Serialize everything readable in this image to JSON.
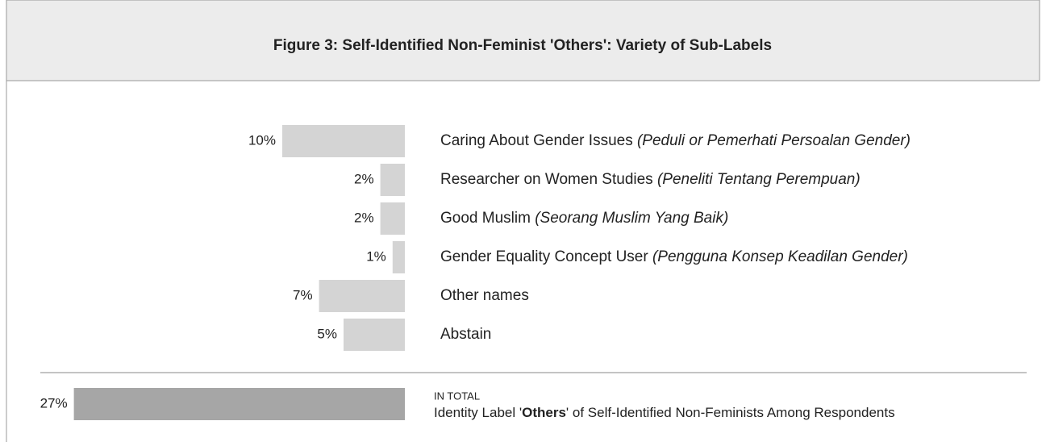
{
  "chart_data": {
    "type": "bar",
    "orientation": "horizontal",
    "title": "Figure 3: Self-Identified Non-Feminist 'Others': Variety of Sub-Labels",
    "categories": [
      "Caring About Gender Issues",
      "Researcher on Women Studies",
      "Good Muslim",
      "Gender Equality Concept User",
      "Other names",
      "Abstain"
    ],
    "category_notes": [
      "(Peduli or Pemerhati Persoalan Gender)",
      "(Peneliti Tentang Perempuan)",
      "(Seorang Muslim Yang Baik)",
      "(Pengguna Konsep Keadilan Gender)",
      null,
      null
    ],
    "values": [
      10,
      2,
      2,
      1,
      7,
      5
    ],
    "value_labels": [
      "10%",
      "2%",
      "2%",
      "1%",
      "7%",
      "5%"
    ],
    "color": "#d4d4d4",
    "total": {
      "heading": "IN TOTAL",
      "label_parts": [
        "Identity Label '",
        "Others",
        "' of Self-Identified Non-Feminists Among Respondents"
      ],
      "value": 27,
      "value_label": "27%",
      "color": "#a6a6a6"
    }
  }
}
